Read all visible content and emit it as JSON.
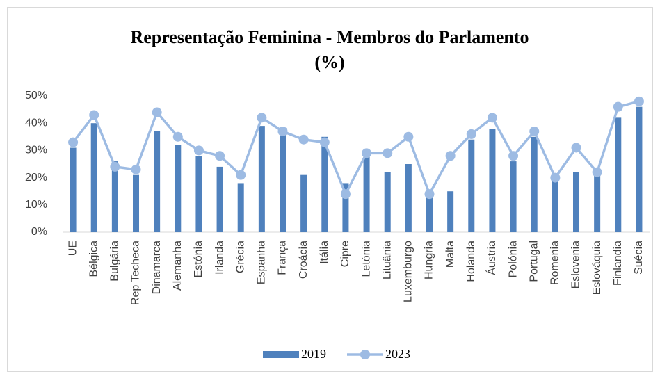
{
  "chart_data": {
    "type": "bar_line",
    "title": "Representação Feminina - Membros do Parlamento (%)",
    "categories": [
      "UE",
      "Bélgica",
      "Bulgária",
      "Rep Techeca",
      "Dinamarca",
      "Alemanha",
      "Estónia",
      "Irlanda",
      "Grécia",
      "Espanha",
      "França",
      "Croácia",
      "Itália",
      "Cipre",
      "Letónia",
      "Lituânia",
      "Luxemburgo",
      "Hungria",
      "Malta",
      "Holanda",
      "Áustria",
      "Polónia",
      "Portugal",
      "Romenia",
      "Eslovenia",
      "Eslováquia",
      "Finlandia",
      "Suécia"
    ],
    "series": [
      {
        "name": "2019",
        "type": "bar",
        "color": "#4f81bd",
        "values": [
          31,
          40,
          26,
          21,
          37,
          32,
          28,
          24,
          18,
          39,
          36,
          21,
          35,
          18,
          28,
          22,
          25,
          13,
          15,
          34,
          38,
          26,
          35,
          19,
          22,
          21,
          42,
          46
        ]
      },
      {
        "name": "2023",
        "type": "line",
        "color": "#9dbbe3",
        "values": [
          33,
          43,
          24,
          23,
          44,
          35,
          30,
          28,
          21,
          42,
          37,
          34,
          33,
          14,
          29,
          29,
          35,
          14,
          28,
          36,
          42,
          28,
          37,
          20,
          31,
          22,
          46,
          48
        ]
      }
    ],
    "ylim": [
      0,
      50
    ],
    "yticks": [
      {
        "value": 0,
        "label": "0%"
      },
      {
        "value": 10,
        "label": "10%"
      },
      {
        "value": 20,
        "label": "20%"
      },
      {
        "value": 30,
        "label": "30%"
      },
      {
        "value": 40,
        "label": "40%"
      },
      {
        "value": 50,
        "label": "50%"
      }
    ],
    "legend": "bottom"
  }
}
